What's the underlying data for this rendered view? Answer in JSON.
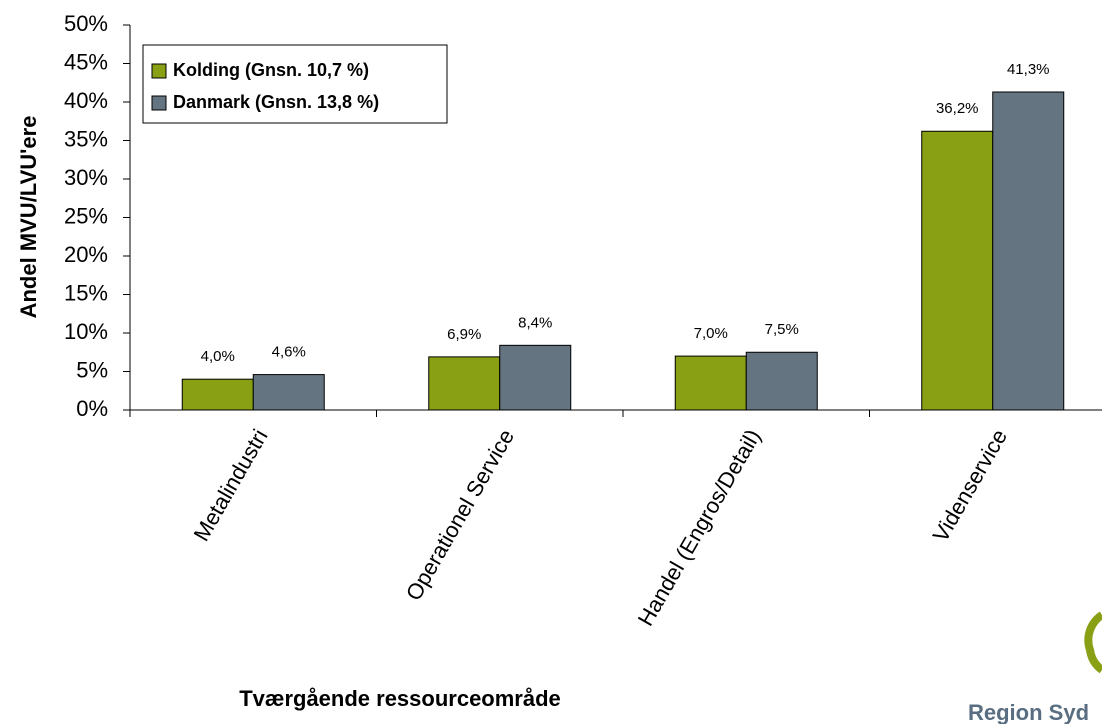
{
  "chart_data": {
    "type": "bar",
    "x_label": "Tværgående ressourceområde",
    "y_label": "Andel MVU/LVU'ere",
    "categories": [
      "Metalindustri",
      "Operationel Service",
      "Handel (Engros/Detail)",
      "Videnservice"
    ],
    "series": [
      {
        "name": "Kolding (Gnsn. 10,7 %)",
        "color": "#8aa014",
        "values": [
          4.0,
          6.9,
          7.0,
          36.2
        ],
        "value_labels": [
          "4,0%",
          "6,9%",
          "7,0%",
          "36,2%"
        ]
      },
      {
        "name": "Danmark (Gnsn. 13,8 %)",
        "color": "#647480",
        "values": [
          4.6,
          8.4,
          7.5,
          41.3
        ],
        "value_labels": [
          "4,6%",
          "8,4%",
          "7,5%",
          "41,3%"
        ]
      }
    ],
    "ylim": [
      0,
      50
    ],
    "yticks": [
      {
        "value": 0,
        "label": "0%"
      },
      {
        "value": 5,
        "label": "5%"
      },
      {
        "value": 10,
        "label": "10%"
      },
      {
        "value": 15,
        "label": "15%"
      },
      {
        "value": 20,
        "label": "20%"
      },
      {
        "value": 25,
        "label": "25%"
      },
      {
        "value": 30,
        "label": "30%"
      },
      {
        "value": 35,
        "label": "35%"
      },
      {
        "value": 40,
        "label": "40%"
      },
      {
        "value": 45,
        "label": "45%"
      },
      {
        "value": 50,
        "label": "50%"
      }
    ],
    "legend": "top-left",
    "logo_text": "Region Syd"
  }
}
